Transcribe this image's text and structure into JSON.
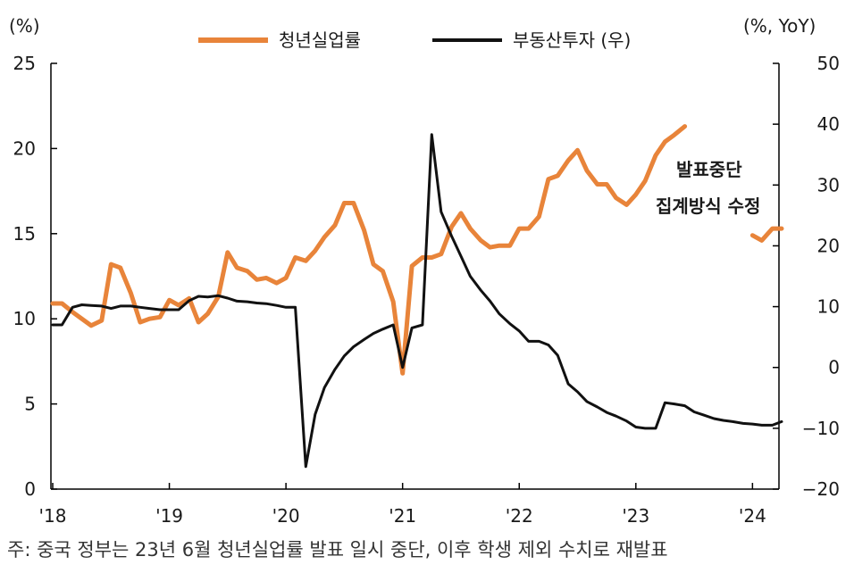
{
  "chart_data": {
    "type": "line",
    "left_axis_unit": "(%)",
    "right_axis_unit": "(%, YoY)",
    "ylim_left": [
      0,
      25
    ],
    "ylim_right": [
      -20,
      50
    ],
    "yticks_left": [
      "0",
      "5",
      "10",
      "15",
      "20",
      "25"
    ],
    "yticks_right": [
      "−20",
      "−10",
      "0",
      "10",
      "20",
      "30",
      "40",
      "50"
    ],
    "yticks_right_values": [
      -20,
      -10,
      0,
      10,
      20,
      30,
      40,
      50
    ],
    "xlim": [
      2018.0,
      2024.25
    ],
    "xticks": [
      {
        "label": "'18",
        "value": 2018
      },
      {
        "label": "'19",
        "value": 2019
      },
      {
        "label": "'20",
        "value": 2020
      },
      {
        "label": "'21",
        "value": 2021
      },
      {
        "label": "'22",
        "value": 2022
      },
      {
        "label": "'23",
        "value": 2023
      },
      {
        "label": "'24",
        "value": 2024
      }
    ],
    "series": [
      {
        "name": "청년실업률",
        "axis": "left",
        "color": "#E8843A",
        "points": [
          [
            2018.0,
            10.9
          ],
          [
            2018.08,
            10.9
          ],
          [
            2018.17,
            10.4
          ],
          [
            2018.25,
            10.0
          ],
          [
            2018.33,
            9.6
          ],
          [
            2018.42,
            9.9
          ],
          [
            2018.5,
            13.2
          ],
          [
            2018.58,
            13.0
          ],
          [
            2018.67,
            11.5
          ],
          [
            2018.75,
            9.8
          ],
          [
            2018.83,
            10.0
          ],
          [
            2018.92,
            10.1
          ],
          [
            2019.0,
            11.1
          ],
          [
            2019.08,
            10.8
          ],
          [
            2019.17,
            11.2
          ],
          [
            2019.25,
            9.8
          ],
          [
            2019.33,
            10.3
          ],
          [
            2019.42,
            11.3
          ],
          [
            2019.5,
            13.9
          ],
          [
            2019.58,
            13.0
          ],
          [
            2019.67,
            12.8
          ],
          [
            2019.75,
            12.3
          ],
          [
            2019.83,
            12.4
          ],
          [
            2019.92,
            12.1
          ],
          [
            2020.0,
            12.4
          ],
          [
            2020.08,
            13.6
          ],
          [
            2020.17,
            13.4
          ],
          [
            2020.25,
            14.0
          ],
          [
            2020.33,
            14.8
          ],
          [
            2020.42,
            15.5
          ],
          [
            2020.5,
            16.8
          ],
          [
            2020.58,
            16.8
          ],
          [
            2020.67,
            15.2
          ],
          [
            2020.75,
            13.2
          ],
          [
            2020.83,
            12.8
          ],
          [
            2020.92,
            11.0
          ],
          [
            2021.0,
            6.8
          ],
          [
            2021.08,
            13.1
          ],
          [
            2021.17,
            13.6
          ],
          [
            2021.25,
            13.6
          ],
          [
            2021.33,
            13.8
          ],
          [
            2021.42,
            15.4
          ],
          [
            2021.5,
            16.2
          ],
          [
            2021.58,
            15.3
          ],
          [
            2021.67,
            14.6
          ],
          [
            2021.75,
            14.2
          ],
          [
            2021.83,
            14.3
          ],
          [
            2021.92,
            14.3
          ],
          [
            2022.0,
            15.3
          ],
          [
            2022.08,
            15.3
          ],
          [
            2022.17,
            16.0
          ],
          [
            2022.25,
            18.2
          ],
          [
            2022.33,
            18.4
          ],
          [
            2022.42,
            19.3
          ],
          [
            2022.5,
            19.9
          ],
          [
            2022.58,
            18.7
          ],
          [
            2022.67,
            17.9
          ],
          [
            2022.75,
            17.9
          ],
          [
            2022.83,
            17.1
          ],
          [
            2022.92,
            16.7
          ],
          [
            2023.0,
            17.3
          ],
          [
            2023.08,
            18.1
          ],
          [
            2023.17,
            19.6
          ],
          [
            2023.25,
            20.4
          ],
          [
            2023.33,
            20.8
          ],
          [
            2023.42,
            21.3
          ]
        ],
        "points_after_gap": [
          [
            2024.0,
            14.9
          ],
          [
            2024.08,
            14.6
          ],
          [
            2024.17,
            15.3
          ],
          [
            2024.25,
            15.3
          ]
        ]
      },
      {
        "name": "부동산투자 (우)",
        "axis": "right",
        "color": "#111111",
        "points": [
          [
            2018.0,
            7.0
          ],
          [
            2018.08,
            7.0
          ],
          [
            2018.17,
            9.9
          ],
          [
            2018.25,
            10.3
          ],
          [
            2018.33,
            10.2
          ],
          [
            2018.42,
            10.1
          ],
          [
            2018.5,
            9.7
          ],
          [
            2018.58,
            10.1
          ],
          [
            2018.67,
            10.1
          ],
          [
            2018.75,
            9.9
          ],
          [
            2018.83,
            9.7
          ],
          [
            2018.92,
            9.5
          ],
          [
            2019.0,
            9.5
          ],
          [
            2019.08,
            9.5
          ],
          [
            2019.17,
            11.0
          ],
          [
            2019.25,
            11.7
          ],
          [
            2019.33,
            11.6
          ],
          [
            2019.42,
            11.8
          ],
          [
            2019.5,
            11.4
          ],
          [
            2019.58,
            10.9
          ],
          [
            2019.67,
            10.8
          ],
          [
            2019.75,
            10.6
          ],
          [
            2019.83,
            10.5
          ],
          [
            2019.92,
            10.2
          ],
          [
            2020.0,
            9.9
          ],
          [
            2020.08,
            9.9
          ],
          [
            2020.17,
            -16.3
          ],
          [
            2020.25,
            -7.7
          ],
          [
            2020.33,
            -3.3
          ],
          [
            2020.42,
            -0.3
          ],
          [
            2020.5,
            1.9
          ],
          [
            2020.58,
            3.4
          ],
          [
            2020.67,
            4.6
          ],
          [
            2020.75,
            5.6
          ],
          [
            2020.83,
            6.3
          ],
          [
            2020.92,
            7.0
          ],
          [
            2021.0,
            0.0
          ],
          [
            2021.08,
            6.5
          ],
          [
            2021.17,
            7.0
          ],
          [
            2021.25,
            38.3
          ],
          [
            2021.33,
            25.6
          ],
          [
            2021.42,
            21.6
          ],
          [
            2021.5,
            18.3
          ],
          [
            2021.58,
            15.0
          ],
          [
            2021.67,
            12.7
          ],
          [
            2021.75,
            10.9
          ],
          [
            2021.83,
            8.8
          ],
          [
            2021.92,
            7.2
          ],
          [
            2022.0,
            6.0
          ],
          [
            2022.08,
            4.3
          ],
          [
            2022.17,
            4.3
          ],
          [
            2022.25,
            3.7
          ],
          [
            2022.33,
            2.0
          ],
          [
            2022.42,
            -2.7
          ],
          [
            2022.5,
            -4.0
          ],
          [
            2022.58,
            -5.6
          ],
          [
            2022.67,
            -6.5
          ],
          [
            2022.75,
            -7.4
          ],
          [
            2022.83,
            -8.0
          ],
          [
            2022.92,
            -8.8
          ],
          [
            2023.0,
            -9.8
          ],
          [
            2023.08,
            -10.0
          ],
          [
            2023.17,
            -10.0
          ],
          [
            2023.25,
            -5.8
          ],
          [
            2023.33,
            -6.0
          ],
          [
            2023.42,
            -6.3
          ],
          [
            2023.5,
            -7.3
          ],
          [
            2023.58,
            -7.8
          ],
          [
            2023.67,
            -8.4
          ],
          [
            2023.75,
            -8.7
          ],
          [
            2023.83,
            -8.9
          ],
          [
            2023.92,
            -9.2
          ],
          [
            2024.0,
            -9.3
          ],
          [
            2024.08,
            -9.5
          ],
          [
            2024.17,
            -9.5
          ],
          [
            2024.25,
            -8.9
          ]
        ]
      }
    ],
    "legend": [
      {
        "label": "청년실업률",
        "color": "#E8843A"
      },
      {
        "label": "부동산투자 (우)",
        "color": "#111111"
      }
    ],
    "legend_position": "top-center",
    "annotation": {
      "line1": "발표중단",
      "line2": "집계방식 수정"
    },
    "grid": false
  },
  "footnote": "주: 중국 정부는 23년 6월 청년실업률 발표 일시 중단, 이후 학생 제외 수치로 재발표"
}
